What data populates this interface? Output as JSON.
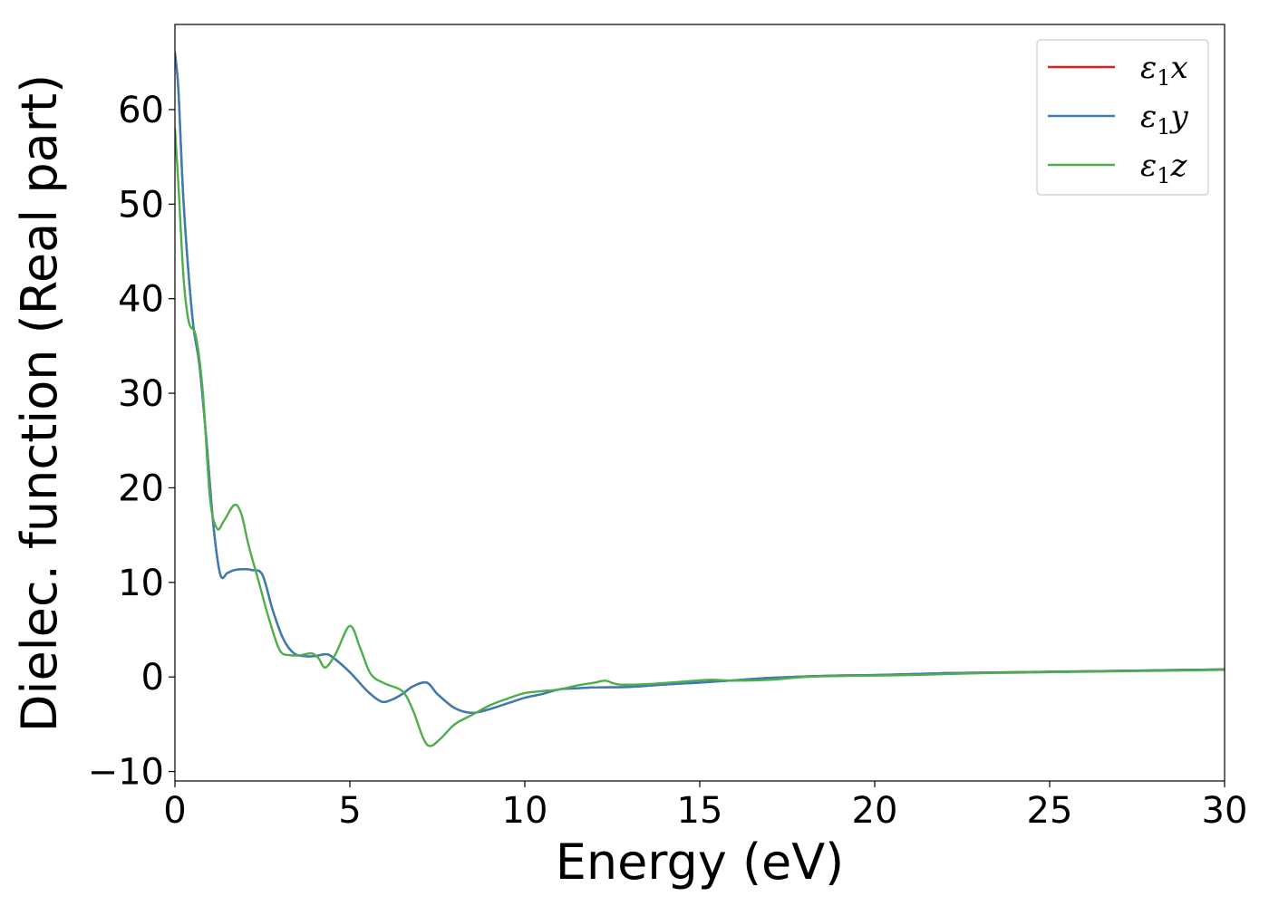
{
  "chart_data": {
    "type": "line",
    "xlabel": "Energy (eV)",
    "ylabel": "Dielec. function (Real part)",
    "xlim": [
      0,
      30
    ],
    "ylim": [
      -11,
      69
    ],
    "x_ticks": [
      0,
      5,
      10,
      15,
      20,
      25,
      30
    ],
    "y_ticks": [
      -10,
      0,
      10,
      20,
      30,
      40,
      50,
      60
    ],
    "x_tick_labels": [
      "0",
      "5",
      "10",
      "15",
      "20",
      "25",
      "30"
    ],
    "y_tick_labels": [
      "−10",
      "0",
      "10",
      "20",
      "30",
      "40",
      "50",
      "60"
    ],
    "grid": false,
    "legend_position": "top-right",
    "series": [
      {
        "name": "ε₁x",
        "legend_symbol": "ε",
        "legend_sub": "1",
        "legend_var": "x",
        "color": "#e41a1c",
        "points": [
          [
            0,
            66
          ],
          [
            0.1,
            62
          ],
          [
            0.25,
            50
          ],
          [
            0.5,
            38
          ],
          [
            0.7,
            33
          ],
          [
            0.9,
            25
          ],
          [
            1.1,
            16
          ],
          [
            1.3,
            10.8
          ],
          [
            1.5,
            11
          ],
          [
            1.7,
            11.3
          ],
          [
            2.0,
            11.4
          ],
          [
            2.2,
            11.3
          ],
          [
            2.5,
            10.8
          ],
          [
            2.8,
            7
          ],
          [
            3.1,
            4
          ],
          [
            3.4,
            2.5
          ],
          [
            3.7,
            2.2
          ],
          [
            4.0,
            2.2
          ],
          [
            4.3,
            2.4
          ],
          [
            4.5,
            2.1
          ],
          [
            5.0,
            0.5
          ],
          [
            5.5,
            -1.5
          ],
          [
            5.9,
            -2.6
          ],
          [
            6.2,
            -2.4
          ],
          [
            6.5,
            -1.8
          ],
          [
            6.8,
            -1.0
          ],
          [
            7.2,
            -0.6
          ],
          [
            7.5,
            -1.8
          ],
          [
            8.0,
            -3.3
          ],
          [
            8.5,
            -3.8
          ],
          [
            9.0,
            -3.4
          ],
          [
            9.5,
            -2.8
          ],
          [
            10,
            -2.2
          ],
          [
            10.5,
            -1.8
          ],
          [
            11,
            -1.3
          ],
          [
            11.5,
            -1.2
          ],
          [
            12,
            -1.1
          ],
          [
            13,
            -1.05
          ],
          [
            14,
            -0.8
          ],
          [
            15,
            -0.6
          ],
          [
            16,
            -0.35
          ],
          [
            17,
            -0.1
          ],
          [
            18,
            0.05
          ],
          [
            19,
            0.15
          ],
          [
            20,
            0.2
          ],
          [
            21,
            0.3
          ],
          [
            22,
            0.4
          ],
          [
            23,
            0.45
          ],
          [
            24,
            0.5
          ],
          [
            25,
            0.55
          ],
          [
            26,
            0.6
          ],
          [
            27,
            0.65
          ],
          [
            28,
            0.7
          ],
          [
            29,
            0.75
          ],
          [
            30,
            0.8
          ]
        ]
      },
      {
        "name": "ε₁y",
        "legend_symbol": "ε",
        "legend_sub": "1",
        "legend_var": "y",
        "color": "#377eb8",
        "points": [
          [
            0,
            66
          ],
          [
            0.1,
            62
          ],
          [
            0.25,
            50
          ],
          [
            0.5,
            38
          ],
          [
            0.7,
            33
          ],
          [
            0.9,
            25
          ],
          [
            1.1,
            16
          ],
          [
            1.3,
            10.8
          ],
          [
            1.5,
            11
          ],
          [
            1.7,
            11.3
          ],
          [
            2.0,
            11.4
          ],
          [
            2.2,
            11.3
          ],
          [
            2.5,
            10.8
          ],
          [
            2.8,
            7
          ],
          [
            3.1,
            4
          ],
          [
            3.4,
            2.5
          ],
          [
            3.7,
            2.2
          ],
          [
            4.0,
            2.2
          ],
          [
            4.3,
            2.4
          ],
          [
            4.5,
            2.1
          ],
          [
            5.0,
            0.5
          ],
          [
            5.5,
            -1.5
          ],
          [
            5.9,
            -2.6
          ],
          [
            6.2,
            -2.4
          ],
          [
            6.5,
            -1.8
          ],
          [
            6.8,
            -1.0
          ],
          [
            7.2,
            -0.6
          ],
          [
            7.5,
            -1.8
          ],
          [
            8.0,
            -3.3
          ],
          [
            8.5,
            -3.8
          ],
          [
            9.0,
            -3.4
          ],
          [
            9.5,
            -2.8
          ],
          [
            10,
            -2.2
          ],
          [
            10.5,
            -1.8
          ],
          [
            11,
            -1.3
          ],
          [
            11.5,
            -1.2
          ],
          [
            12,
            -1.1
          ],
          [
            13,
            -1.05
          ],
          [
            14,
            -0.8
          ],
          [
            15,
            -0.6
          ],
          [
            16,
            -0.35
          ],
          [
            17,
            -0.1
          ],
          [
            18,
            0.05
          ],
          [
            19,
            0.15
          ],
          [
            20,
            0.2
          ],
          [
            21,
            0.3
          ],
          [
            22,
            0.4
          ],
          [
            23,
            0.45
          ],
          [
            24,
            0.5
          ],
          [
            25,
            0.55
          ],
          [
            26,
            0.6
          ],
          [
            27,
            0.65
          ],
          [
            28,
            0.7
          ],
          [
            29,
            0.75
          ],
          [
            30,
            0.8
          ]
        ]
      },
      {
        "name": "ε₁z",
        "legend_symbol": "ε",
        "legend_sub": "1",
        "legend_var": "z",
        "color": "#4daf4a",
        "points": [
          [
            0,
            58
          ],
          [
            0.1,
            52
          ],
          [
            0.25,
            42
          ],
          [
            0.4,
            37.5
          ],
          [
            0.6,
            36
          ],
          [
            0.8,
            30
          ],
          [
            1.0,
            19
          ],
          [
            1.2,
            15.7
          ],
          [
            1.4,
            16.5
          ],
          [
            1.7,
            18.2
          ],
          [
            1.9,
            17.2
          ],
          [
            2.1,
            14
          ],
          [
            2.4,
            10
          ],
          [
            2.7,
            6
          ],
          [
            3.0,
            2.8
          ],
          [
            3.3,
            2.3
          ],
          [
            3.6,
            2.3
          ],
          [
            3.9,
            2.5
          ],
          [
            4.1,
            2.0
          ],
          [
            4.3,
            1.0
          ],
          [
            4.6,
            2.5
          ],
          [
            5.0,
            5.4
          ],
          [
            5.3,
            3.0
          ],
          [
            5.6,
            0.3
          ],
          [
            6.0,
            -0.7
          ],
          [
            6.5,
            -1.5
          ],
          [
            6.8,
            -3.5
          ],
          [
            7.1,
            -6.5
          ],
          [
            7.3,
            -7.3
          ],
          [
            7.6,
            -6.5
          ],
          [
            8.0,
            -5
          ],
          [
            8.5,
            -4.0
          ],
          [
            9.0,
            -3.0
          ],
          [
            9.5,
            -2.3
          ],
          [
            10,
            -1.7
          ],
          [
            10.5,
            -1.5
          ],
          [
            11,
            -1.3
          ],
          [
            11.5,
            -0.9
          ],
          [
            12,
            -0.6
          ],
          [
            12.3,
            -0.4
          ],
          [
            12.7,
            -0.8
          ],
          [
            13.5,
            -0.75
          ],
          [
            14.5,
            -0.5
          ],
          [
            15.3,
            -0.3
          ],
          [
            16,
            -0.4
          ],
          [
            17,
            -0.3
          ],
          [
            18,
            0
          ],
          [
            19,
            0.1
          ],
          [
            20,
            0.15
          ],
          [
            21,
            0.2
          ],
          [
            22,
            0.3
          ],
          [
            23,
            0.4
          ],
          [
            24,
            0.45
          ],
          [
            25,
            0.5
          ],
          [
            26,
            0.55
          ],
          [
            27,
            0.6
          ],
          [
            28,
            0.65
          ],
          [
            29,
            0.7
          ],
          [
            30,
            0.75
          ]
        ]
      }
    ]
  }
}
